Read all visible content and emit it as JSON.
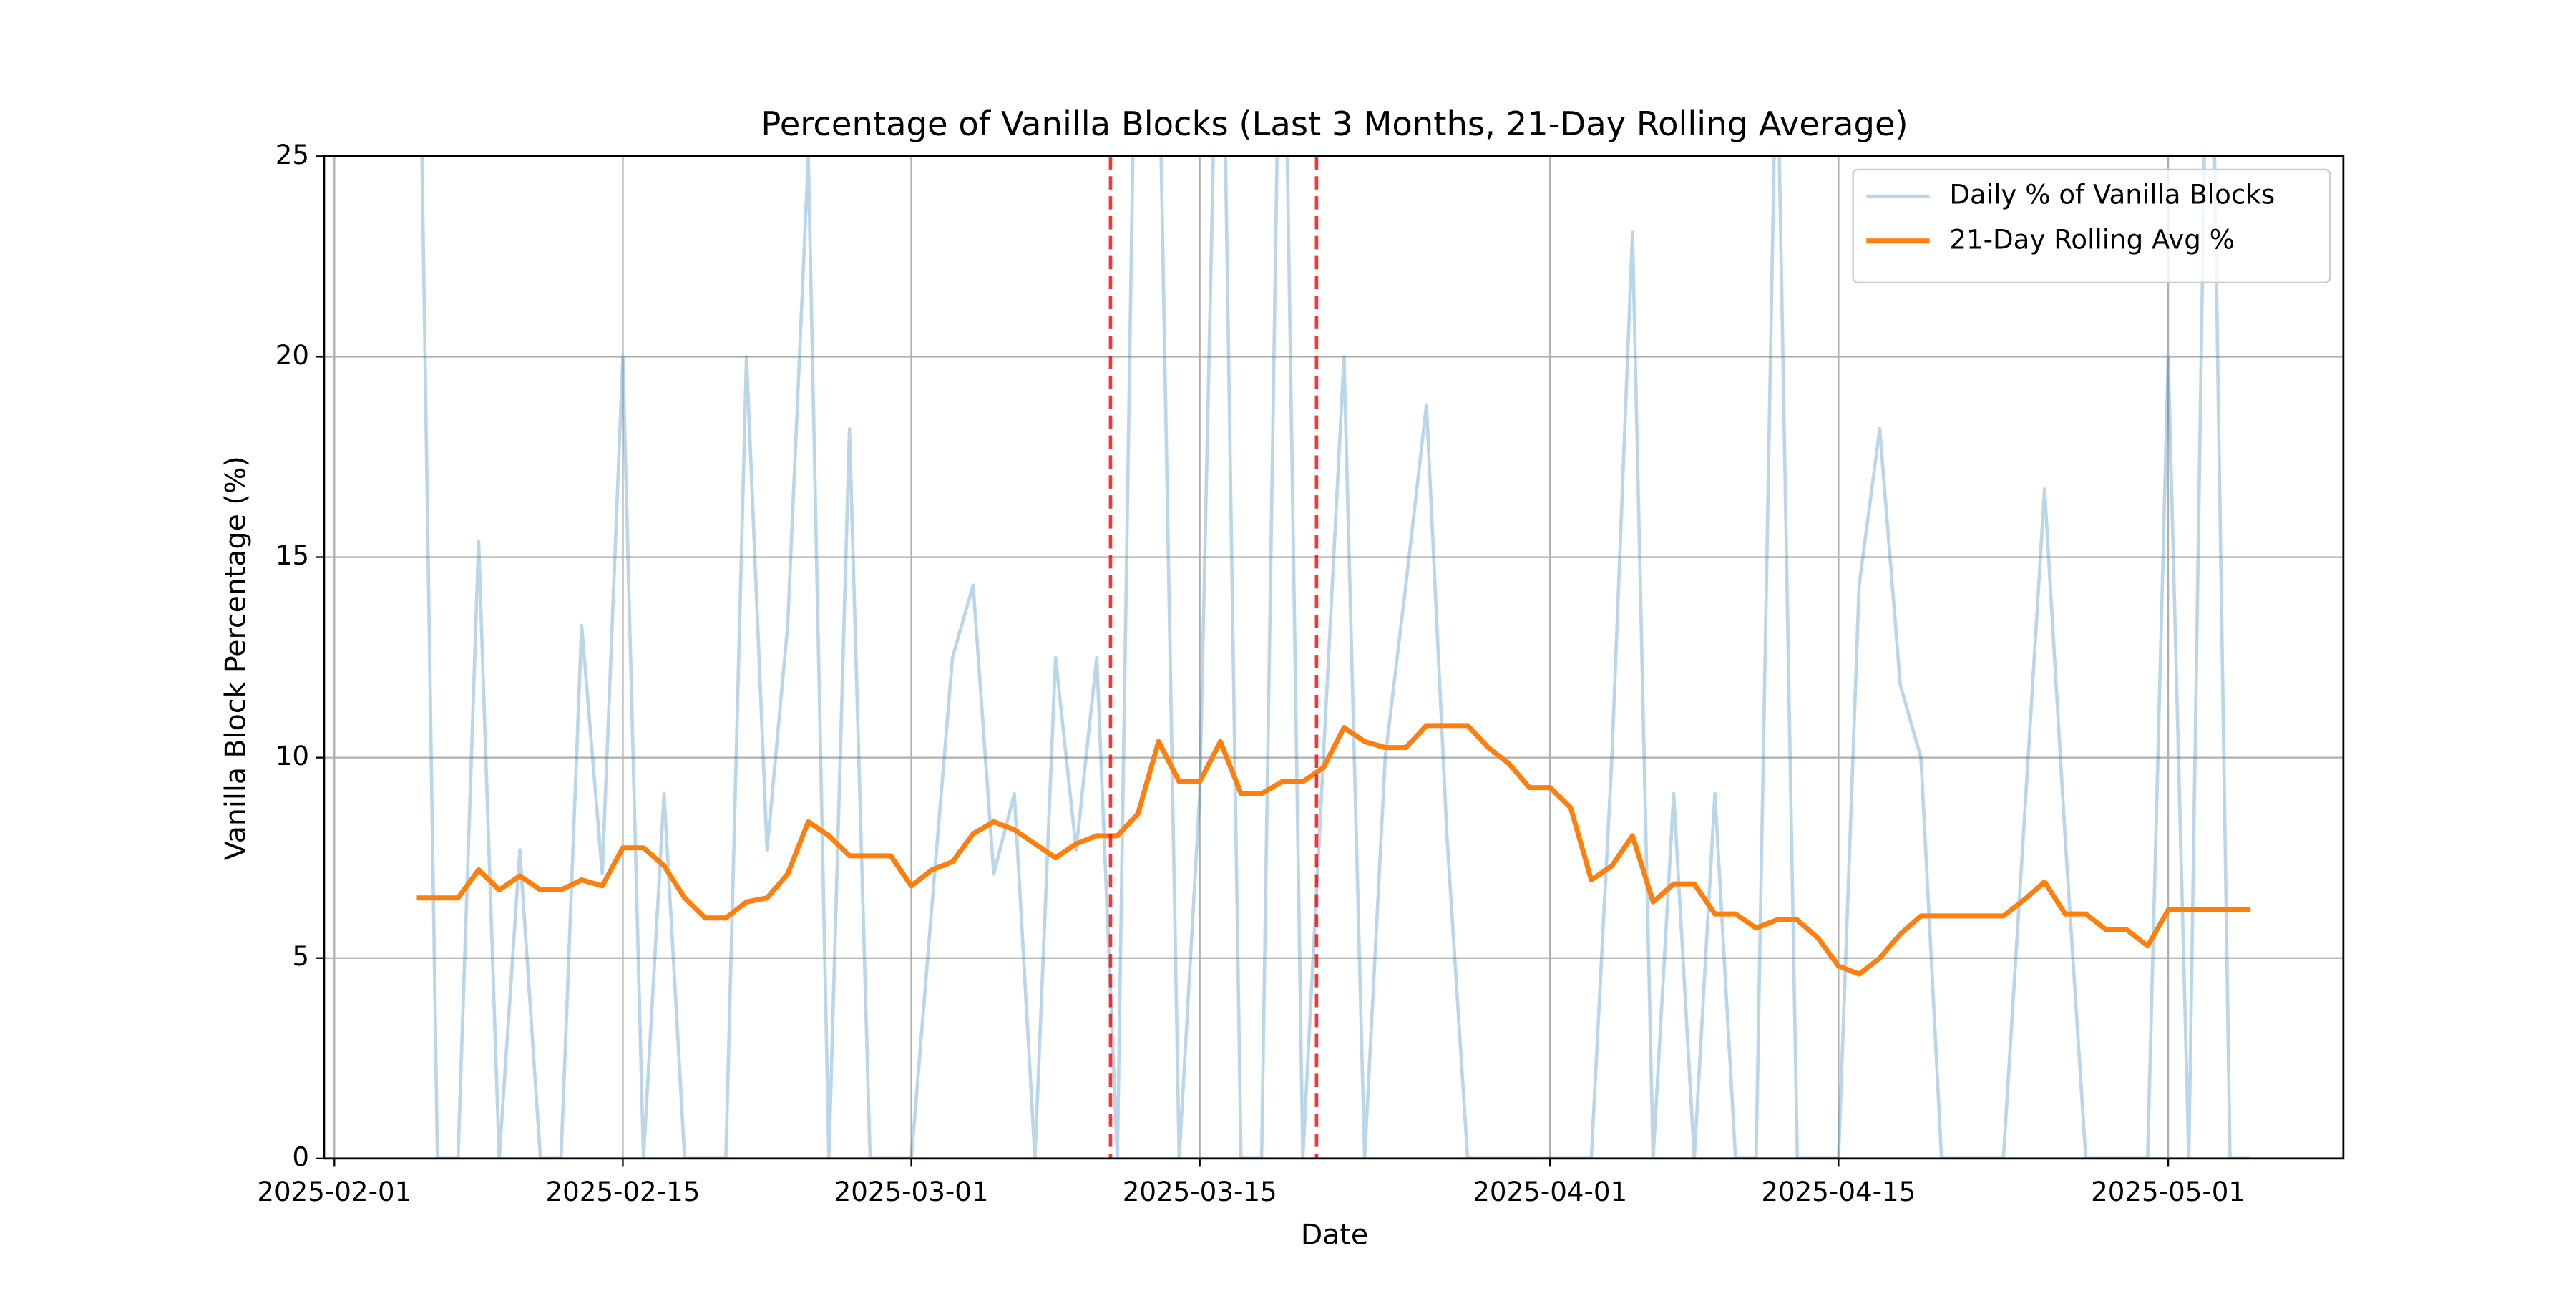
{
  "chart_data": {
    "type": "line",
    "title": "Percentage of Vanilla Blocks (Last 3 Months, 21-Day Rolling Average)",
    "xlabel": "Date",
    "ylabel": "Vanilla Block Percentage (%)",
    "x": [
      "2025-02-05",
      "2025-02-06",
      "2025-02-07",
      "2025-02-08",
      "2025-02-09",
      "2025-02-10",
      "2025-02-11",
      "2025-02-12",
      "2025-02-13",
      "2025-02-14",
      "2025-02-15",
      "2025-02-16",
      "2025-02-17",
      "2025-02-18",
      "2025-02-19",
      "2025-02-20",
      "2025-02-21",
      "2025-02-22",
      "2025-02-23",
      "2025-02-24",
      "2025-02-25",
      "2025-02-26",
      "2025-02-27",
      "2025-02-28",
      "2025-03-01",
      "2025-03-02",
      "2025-03-03",
      "2025-03-04",
      "2025-03-05",
      "2025-03-06",
      "2025-03-07",
      "2025-03-08",
      "2025-03-09",
      "2025-03-10",
      "2025-03-11",
      "2025-03-12",
      "2025-03-13",
      "2025-03-14",
      "2025-03-15",
      "2025-03-16",
      "2025-03-17",
      "2025-03-18",
      "2025-03-19",
      "2025-03-20",
      "2025-03-21",
      "2025-03-22",
      "2025-03-23",
      "2025-03-24",
      "2025-03-25",
      "2025-03-26",
      "2025-03-27",
      "2025-03-28",
      "2025-03-29",
      "2025-03-30",
      "2025-03-31",
      "2025-04-01",
      "2025-04-02",
      "2025-04-03",
      "2025-04-04",
      "2025-04-05",
      "2025-04-06",
      "2025-04-07",
      "2025-04-08",
      "2025-04-09",
      "2025-04-10",
      "2025-04-11",
      "2025-04-12",
      "2025-04-13",
      "2025-04-14",
      "2025-04-15",
      "2025-04-16",
      "2025-04-17",
      "2025-04-18",
      "2025-04-19",
      "2025-04-20",
      "2025-04-21",
      "2025-04-22",
      "2025-04-23",
      "2025-04-24",
      "2025-04-25",
      "2025-04-26",
      "2025-04-27",
      "2025-04-28",
      "2025-04-29",
      "2025-04-30",
      "2025-05-01",
      "2025-05-02",
      "2025-05-03",
      "2025-05-04",
      "2025-05-05"
    ],
    "series": [
      {
        "name": "Daily % of Vanilla Blocks",
        "color": "#1f77b4",
        "opacity": 0.3,
        "width": 2,
        "values": [
          33.3,
          0,
          0,
          15.4,
          0,
          7.7,
          0,
          0,
          13.3,
          7.1,
          20,
          0,
          9.1,
          0,
          0,
          0,
          20,
          7.7,
          13.3,
          25,
          0,
          18.2,
          0,
          0,
          0,
          6.3,
          12.5,
          14.3,
          7.1,
          9.1,
          0,
          12.5,
          7.7,
          12.5,
          0,
          33.3,
          28.6,
          0,
          9.1,
          33.3,
          0,
          0,
          33.3,
          0,
          10,
          20,
          0,
          10,
          14.3,
          18.8,
          8,
          0,
          0,
          0,
          0,
          0,
          0,
          0,
          10,
          23.1,
          0,
          9.1,
          0,
          9.1,
          0,
          0,
          28.6,
          0,
          0,
          0,
          14.3,
          18.2,
          11.8,
          10,
          0,
          0,
          0,
          0,
          8.3,
          16.7,
          8,
          0,
          0,
          0,
          0,
          20,
          0,
          33.3,
          0,
          0
        ]
      },
      {
        "name": "21-Day Rolling Avg %",
        "color": "#ff7f0e",
        "opacity": 1,
        "width": 3,
        "values": [
          6.5,
          6.5,
          6.5,
          7.2,
          6.7,
          7.05,
          6.7,
          6.7,
          6.95,
          6.8,
          7.75,
          7.75,
          7.3,
          6.5,
          6.0,
          6.0,
          6.4,
          6.5,
          7.1,
          8.4,
          8.05,
          7.55,
          7.55,
          7.55,
          6.8,
          7.2,
          7.4,
          8.1,
          8.4,
          8.2,
          7.85,
          7.5,
          7.85,
          8.05,
          8.05,
          8.6,
          10.4,
          9.4,
          9.4,
          10.4,
          9.1,
          9.1,
          9.4,
          9.4,
          9.75,
          10.75,
          10.4,
          10.25,
          10.25,
          10.8,
          10.8,
          10.8,
          10.25,
          9.85,
          9.25,
          9.25,
          8.75,
          6.95,
          7.3,
          8.05,
          6.4,
          6.85,
          6.85,
          6.1,
          6.1,
          5.75,
          5.95,
          5.95,
          5.5,
          4.8,
          4.6,
          5.0,
          5.6,
          6.05,
          6.05,
          6.05,
          6.05,
          6.05,
          6.45,
          6.9,
          6.1,
          6.1,
          5.7,
          5.7,
          5.3,
          6.2,
          6.2,
          6.2,
          6.2,
          6.2
        ]
      }
    ],
    "vlines": [
      "2025-03-10T16:00",
      "2025-03-20T16:00"
    ],
    "vline_color": "red",
    "xlim": [
      "2025-01-31T12:00",
      "2025-05-09T12:00"
    ],
    "xticks": [
      "2025-02-01",
      "2025-02-15",
      "2025-03-01",
      "2025-03-15",
      "2025-04-01",
      "2025-04-15",
      "2025-05-01"
    ],
    "ylim": [
      0,
      25
    ],
    "yticks": [
      0,
      5,
      10,
      15,
      20,
      25
    ],
    "grid": true,
    "legend": "upper right"
  }
}
